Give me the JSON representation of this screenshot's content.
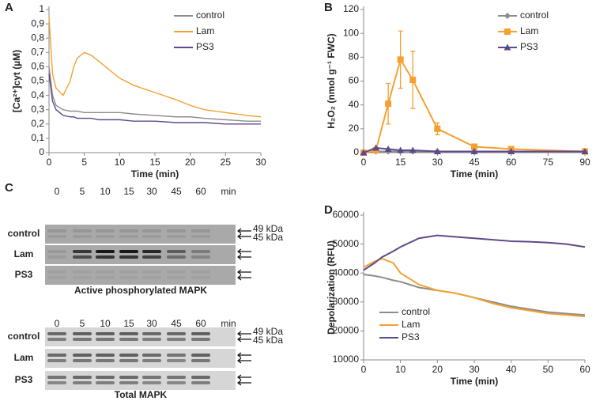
{
  "chart_data": [
    {
      "type": "line",
      "label": "A",
      "x_label": "Time (min)",
      "y_label": "[Ca²⁺]cyt (µM)",
      "xlim": [
        0,
        30
      ],
      "xticks": [
        0,
        5,
        10,
        15,
        20,
        25,
        30
      ],
      "ylim": [
        0,
        1
      ],
      "yticks": [
        0,
        {
          "value": 0.1,
          "label": "0,1"
        },
        {
          "value": 0.2,
          "label": "0,2"
        },
        {
          "value": 0.3,
          "label": "0,3"
        },
        {
          "value": 0.4,
          "label": "0,4"
        },
        {
          "value": 0.5,
          "label": "0,5"
        },
        {
          "value": 0.6,
          "label": "0,6"
        },
        {
          "value": 0.7,
          "label": "0,7"
        },
        {
          "value": 0.8,
          "label": "0,8"
        },
        {
          "value": 0.9,
          "label": "0,9"
        },
        1
      ],
      "legend": "upper right",
      "x": [
        0,
        0.5,
        1,
        2,
        3,
        3.5,
        4,
        5,
        6,
        7,
        8,
        10,
        12,
        15,
        18,
        20,
        22,
        25,
        28,
        30
      ],
      "series": [
        {
          "name": "control",
          "color": "#8c8c8c",
          "values": [
            0.6,
            0.4,
            0.33,
            0.3,
            0.29,
            0.29,
            0.29,
            0.28,
            0.28,
            0.28,
            0.28,
            0.28,
            0.27,
            0.26,
            0.25,
            0.25,
            0.24,
            0.23,
            0.22,
            0.22
          ]
        },
        {
          "name": "Lam",
          "color": "#f5a031",
          "values": [
            0.95,
            0.55,
            0.45,
            0.4,
            0.5,
            0.6,
            0.66,
            0.7,
            0.68,
            0.64,
            0.6,
            0.52,
            0.47,
            0.42,
            0.37,
            0.33,
            0.3,
            0.28,
            0.26,
            0.25
          ]
        },
        {
          "name": "PS3",
          "color": "#5e4a8a",
          "values": [
            0.55,
            0.36,
            0.3,
            0.26,
            0.25,
            0.25,
            0.24,
            0.24,
            0.24,
            0.23,
            0.23,
            0.23,
            0.22,
            0.22,
            0.21,
            0.21,
            0.21,
            0.2,
            0.2,
            0.2
          ]
        }
      ]
    },
    {
      "type": "line",
      "label": "B",
      "x_label": "Time (min)",
      "y_label": "H₂O₂ (nmol g⁻¹ FWC)",
      "xlim": [
        0,
        90
      ],
      "xticks": [
        0,
        15,
        30,
        45,
        60,
        75,
        90
      ],
      "ylim": [
        0,
        120
      ],
      "yticks": [
        0,
        20,
        40,
        60,
        80,
        100,
        120
      ],
      "legend": "upper right",
      "x": [
        0,
        5,
        10,
        15,
        20,
        30,
        45,
        60,
        90
      ],
      "series": [
        {
          "name": "control",
          "color": "#8c8c8c",
          "marker": "diamond",
          "values": [
            0,
            1,
            1,
            1,
            1,
            1,
            1,
            1,
            1
          ]
        },
        {
          "name": "Lam",
          "color": "#f5a031",
          "marker": "square",
          "values": [
            0,
            2,
            41,
            78,
            61,
            20,
            5,
            3,
            1
          ],
          "errors": [
            0,
            1,
            17,
            24,
            24,
            5,
            1,
            1,
            1
          ]
        },
        {
          "name": "PS3",
          "color": "#5e4a8a",
          "marker": "triangle",
          "values": [
            0,
            4,
            3,
            2,
            2,
            1,
            1,
            1,
            1
          ]
        }
      ]
    },
    {
      "type": "line",
      "label": "D",
      "x_label": "Time (min)",
      "y_label": "Depolarization (RFU)",
      "xlim": [
        0,
        60
      ],
      "xticks": [
        0,
        10,
        20,
        30,
        40,
        50,
        60
      ],
      "ylim": [
        10000,
        60000
      ],
      "yticks": [
        10000,
        20000,
        30000,
        40000,
        50000,
        60000
      ],
      "legend": "lower left",
      "x": [
        0,
        3,
        5,
        8,
        10,
        15,
        20,
        25,
        30,
        35,
        40,
        45,
        50,
        55,
        60
      ],
      "series": [
        {
          "name": "control",
          "color": "#8c8c8c",
          "values": [
            39500,
            39000,
            38500,
            37500,
            37000,
            35000,
            34000,
            33000,
            31500,
            30000,
            28500,
            27500,
            26500,
            26000,
            25500
          ]
        },
        {
          "name": "Lam",
          "color": "#f5a031",
          "values": [
            42000,
            44000,
            45000,
            43500,
            40000,
            36000,
            34000,
            33000,
            31500,
            29500,
            28000,
            27000,
            26000,
            25500,
            25000
          ]
        },
        {
          "name": "PS3",
          "color": "#5e4a8a",
          "values": [
            41000,
            43500,
            45500,
            47500,
            49000,
            52000,
            53000,
            52500,
            52000,
            51500,
            51000,
            50800,
            50500,
            50000,
            49000
          ]
        }
      ]
    }
  ],
  "blots": {
    "label": "C",
    "panels": [
      {
        "times": [
          0,
          5,
          10,
          15,
          30,
          45,
          60
        ],
        "unit": "min",
        "rows": [
          "control",
          "Lam",
          "PS3"
        ],
        "markers": [
          "49 kDa",
          "45 kDa"
        ],
        "caption": "Active phosphorylated MAPK"
      },
      {
        "times": [
          0,
          5,
          10,
          15,
          30,
          45,
          60
        ],
        "unit": "min",
        "rows": [
          "control",
          "Lam",
          "PS3"
        ],
        "markers": [
          "49 kDa",
          "45 kDa"
        ],
        "caption": "Total MAPK"
      }
    ]
  }
}
